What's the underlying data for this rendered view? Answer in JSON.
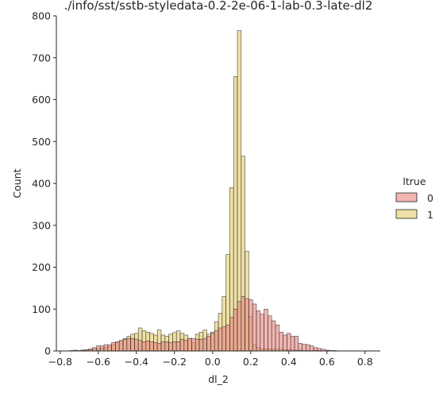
{
  "chart_data": {
    "type": "bar",
    "title": "./info/sst/sstb-styledata-0.2-2e-06-1-lab-0.3-late-dl2",
    "xlabel": "dl_2",
    "ylabel": "Count",
    "xlim": [
      -0.82,
      0.88
    ],
    "ylim": [
      0,
      800
    ],
    "x_ticks": [
      "−0.8",
      "−0.6",
      "−0.4",
      "−0.2",
      "0.0",
      "0.2",
      "0.4",
      "0.6",
      "0.8"
    ],
    "y_ticks": [
      "0",
      "100",
      "200",
      "300",
      "400",
      "500",
      "600",
      "700",
      "800"
    ],
    "grid": false,
    "legend": {
      "title": "ltrue",
      "position": "right",
      "entries": [
        "0",
        "1"
      ]
    },
    "colors": {
      "0": "#e8837f",
      "1": "#e3cb6b",
      "edge": "#222222"
    },
    "bin_start": -0.75,
    "bin_width": 0.02,
    "series": [
      {
        "name": "0",
        "values": [
          0,
          0,
          0,
          2,
          3,
          5,
          8,
          12,
          12,
          15,
          15,
          20,
          22,
          25,
          28,
          30,
          30,
          28,
          25,
          22,
          24,
          22,
          20,
          18,
          22,
          22,
          20,
          22,
          22,
          28,
          25,
          30,
          30,
          28,
          28,
          30,
          35,
          42,
          48,
          55,
          58,
          62,
          80,
          100,
          118,
          130,
          125,
          122,
          112,
          96,
          88,
          100,
          84,
          72,
          62,
          45,
          38,
          42,
          35,
          35,
          18,
          16,
          15,
          12,
          8,
          6,
          4,
          2,
          1,
          1,
          0,
          0
        ]
      },
      {
        "name": "1",
        "values": [
          1,
          2,
          1,
          2,
          2,
          3,
          5,
          5,
          7,
          8,
          10,
          15,
          20,
          25,
          30,
          35,
          40,
          42,
          55,
          48,
          45,
          42,
          38,
          50,
          38,
          35,
          40,
          44,
          48,
          42,
          38,
          30,
          20,
          40,
          45,
          50,
          40,
          45,
          70,
          90,
          130,
          230,
          390,
          655,
          765,
          465,
          238,
          82,
          15,
          8,
          5,
          5,
          5,
          4,
          4,
          4,
          3,
          3,
          2,
          2,
          2,
          1,
          1,
          1,
          1,
          1,
          0,
          0,
          0,
          0,
          0,
          0
        ]
      }
    ]
  }
}
